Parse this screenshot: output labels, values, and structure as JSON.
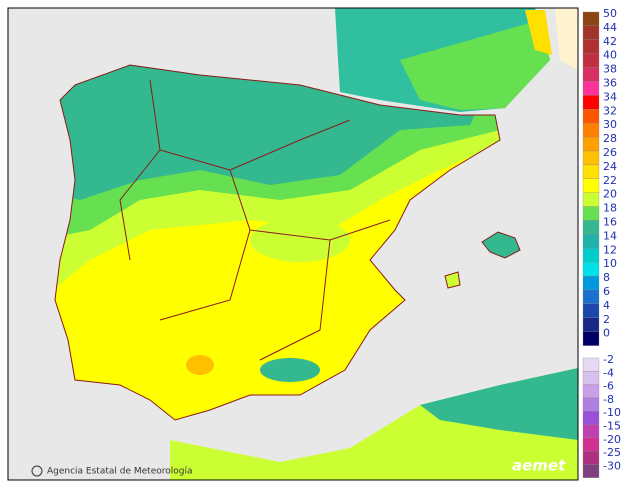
{
  "legend": {
    "upper": [
      {
        "label": "50",
        "color": "#8b4513"
      },
      {
        "label": "44",
        "color": "#a0342a"
      },
      {
        "label": "42",
        "color": "#b03030"
      },
      {
        "label": "40",
        "color": "#c03040"
      },
      {
        "label": "38",
        "color": "#d83060"
      },
      {
        "label": "36",
        "color": "#ff3399"
      },
      {
        "label": "34",
        "color": "#ff0000"
      },
      {
        "label": "32",
        "color": "#ff5500"
      },
      {
        "label": "30",
        "color": "#ff8000"
      },
      {
        "label": "28",
        "color": "#ffa000"
      },
      {
        "label": "26",
        "color": "#ffc000"
      },
      {
        "label": "24",
        "color": "#ffe000"
      },
      {
        "label": "22",
        "color": "#ffff00"
      },
      {
        "label": "20",
        "color": "#ccff33"
      },
      {
        "label": "18",
        "color": "#66e050"
      },
      {
        "label": "16",
        "color": "#33b890"
      },
      {
        "label": "14",
        "color": "#20b2aa"
      },
      {
        "label": "12",
        "color": "#00cccc"
      },
      {
        "label": "10",
        "color": "#00e0e8"
      },
      {
        "label": "8",
        "color": "#0099dd"
      },
      {
        "label": "6",
        "color": "#1a70cc"
      },
      {
        "label": "4",
        "color": "#1a48aa"
      },
      {
        "label": "2",
        "color": "#1a2888"
      },
      {
        "label": "0",
        "color": "#000066"
      }
    ],
    "lower": [
      {
        "label": "-2",
        "color": "#e6d8f0"
      },
      {
        "label": "-4",
        "color": "#d8c0ec"
      },
      {
        "label": "-6",
        "color": "#c8a0e8"
      },
      {
        "label": "-8",
        "color": "#b080e0"
      },
      {
        "label": "-10",
        "color": "#9a50d8"
      },
      {
        "label": "-15",
        "color": "#c040b0"
      },
      {
        "label": "-20",
        "color": "#d03090"
      },
      {
        "label": "-25",
        "color": "#b03080"
      },
      {
        "label": "-30",
        "color": "#804080"
      }
    ]
  },
  "footer": {
    "credit": "Agencia Estatal de Meteorología",
    "logo": "aemet"
  }
}
